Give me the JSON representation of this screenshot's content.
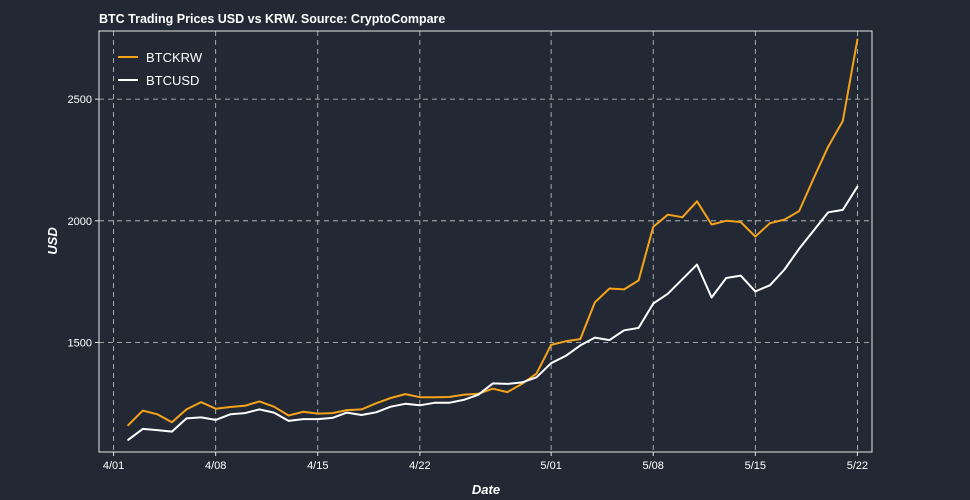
{
  "chart_data": {
    "type": "line",
    "title": "BTC Trading Prices USD vs KRW. Source: CryptoCompare",
    "xlabel": "Date",
    "ylabel": "USD",
    "x_start": "2017-04-01",
    "xlim": [
      "2017-03-31",
      "2017-05-23"
    ],
    "ylim": [
      1050,
      2780
    ],
    "grid": true,
    "legend_position": "top-left",
    "x_ticks": [
      {
        "date": "2017-04-01",
        "label": "4/01"
      },
      {
        "date": "2017-04-08",
        "label": "4/08"
      },
      {
        "date": "2017-04-15",
        "label": "4/15"
      },
      {
        "date": "2017-04-22",
        "label": "4/22"
      },
      {
        "date": "2017-05-01",
        "label": "5/01"
      },
      {
        "date": "2017-05-08",
        "label": "5/08"
      },
      {
        "date": "2017-05-15",
        "label": "5/15"
      },
      {
        "date": "2017-05-22",
        "label": "5/22"
      }
    ],
    "y_ticks": [
      {
        "value": 1500,
        "label": "1500"
      },
      {
        "value": 2000,
        "label": "2000"
      },
      {
        "value": 2500,
        "label": "2500"
      }
    ],
    "x": [
      "2017-04-02",
      "2017-04-03",
      "2017-04-04",
      "2017-04-05",
      "2017-04-06",
      "2017-04-07",
      "2017-04-08",
      "2017-04-09",
      "2017-04-10",
      "2017-04-11",
      "2017-04-12",
      "2017-04-13",
      "2017-04-14",
      "2017-04-15",
      "2017-04-16",
      "2017-04-17",
      "2017-04-18",
      "2017-04-19",
      "2017-04-20",
      "2017-04-21",
      "2017-04-22",
      "2017-04-23",
      "2017-04-24",
      "2017-04-25",
      "2017-04-26",
      "2017-04-27",
      "2017-04-28",
      "2017-04-29",
      "2017-04-30",
      "2017-05-01",
      "2017-05-02",
      "2017-05-03",
      "2017-05-04",
      "2017-05-05",
      "2017-05-06",
      "2017-05-07",
      "2017-05-08",
      "2017-05-09",
      "2017-05-10",
      "2017-05-11",
      "2017-05-12",
      "2017-05-13",
      "2017-05-14",
      "2017-05-15",
      "2017-05-16",
      "2017-05-17",
      "2017-05-18",
      "2017-05-19",
      "2017-05-20",
      "2017-05-21",
      "2017-05-22"
    ],
    "series": [
      {
        "name": "BTCKRW",
        "color": "#f5a31a",
        "values": [
          1160,
          1220,
          1205,
          1172,
          1225,
          1255,
          1228,
          1235,
          1240,
          1258,
          1236,
          1200,
          1215,
          1208,
          1210,
          1222,
          1225,
          1250,
          1272,
          1288,
          1275,
          1275,
          1276,
          1285,
          1289,
          1310,
          1296,
          1330,
          1372,
          1490,
          1505,
          1514,
          1665,
          1722,
          1718,
          1755,
          1975,
          2025,
          2015,
          2080,
          1985,
          2000,
          1995,
          1935,
          1990,
          2005,
          2040,
          2175,
          2305,
          2410,
          2745
        ]
      },
      {
        "name": "BTCUSD",
        "color": "#ffffff",
        "values": [
          1100,
          1145,
          1140,
          1134,
          1188,
          1192,
          1182,
          1205,
          1210,
          1225,
          1212,
          1178,
          1185,
          1185,
          1190,
          1212,
          1202,
          1213,
          1236,
          1248,
          1242,
          1252,
          1252,
          1264,
          1285,
          1332,
          1330,
          1336,
          1357,
          1415,
          1445,
          1488,
          1520,
          1510,
          1550,
          1560,
          1660,
          1700,
          1760,
          1820,
          1685,
          1765,
          1775,
          1710,
          1735,
          1800,
          1885,
          1960,
          2035,
          2045,
          2140
        ]
      }
    ]
  }
}
